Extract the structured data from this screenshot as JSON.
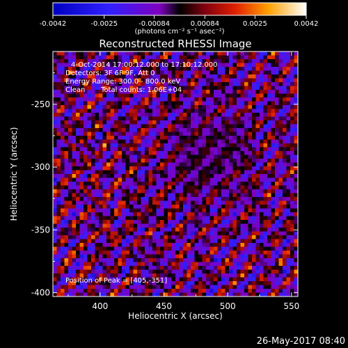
{
  "chart_data": {
    "type": "heatmap",
    "title": "Reconstructed RHESSI Image",
    "xlabel": "Heliocentric X (arcsec)",
    "ylabel": "Heliocentric Y (arcsec)",
    "xlim": [
      363,
      555
    ],
    "ylim": [
      -403,
      -208
    ],
    "x_ticks": [
      400,
      450,
      500,
      550
    ],
    "y_ticks": [
      -250,
      -300,
      -350,
      -400
    ],
    "colorbar": {
      "ticks": [
        "-0.0042",
        "-0.0025",
        "-0.00084",
        "0.00084",
        "0.0025",
        "0.0042"
      ],
      "units": "(photons cm⁻² s⁻¹ asec⁻²)",
      "range": [
        -0.0042,
        0.0042
      ]
    },
    "annotations": {
      "time": "4-Oct-2014 17:00:12.000 to 17:10:12.000",
      "detectors": "Detectors: 3F 6F 9F, Att 0",
      "energy": "Energy Range: 300.0 - 800.0 keV",
      "method": "Clean",
      "counts": "Total counts: 1.06E+04",
      "peak": "Position of Peak = [405,-351]"
    },
    "peak": {
      "x": 405,
      "y": -351
    }
  },
  "footer": {
    "timestamp": "26-May-2017 08:40"
  }
}
